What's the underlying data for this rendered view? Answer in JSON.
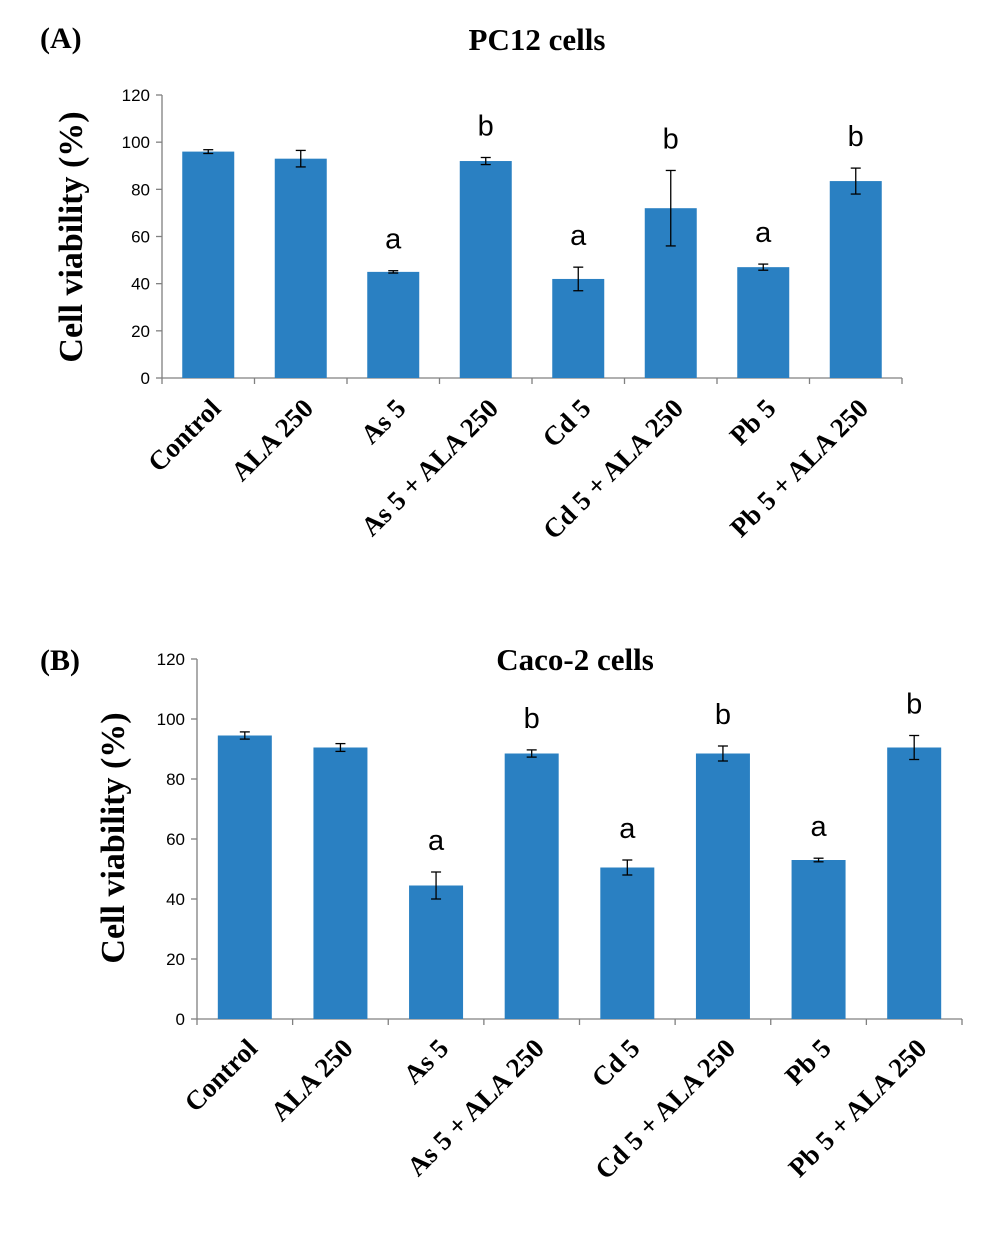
{
  "chart_data": [
    {
      "type": "bar",
      "panel_label": "(A)",
      "title": "PC12 cells",
      "xlabel": "",
      "ylabel": "Cell viability (%)",
      "ylim": [
        0,
        120
      ],
      "yticks": [
        0,
        20,
        40,
        60,
        80,
        100,
        120
      ],
      "categories": [
        "Control",
        "ALA 250",
        "As 5",
        "As 5 + ALA 250",
        "Cd 5",
        "Cd 5 + ALA 250",
        "Pb 5",
        "Pb 5 + ALA 250"
      ],
      "values": [
        96,
        93,
        45,
        92,
        42,
        72,
        47,
        83.5
      ],
      "errors": [
        0.8,
        3.5,
        0.5,
        1.5,
        5,
        16,
        1.3,
        5.5
      ],
      "labels": [
        "",
        "",
        "a",
        "b",
        "a",
        "b",
        "a",
        "b"
      ],
      "color": "#2a80c2",
      "grid": false,
      "legend": "none"
    },
    {
      "type": "bar",
      "panel_label": "(B)",
      "title": "Caco-2 cells",
      "xlabel": "",
      "ylabel": "Cell viability (%)",
      "ylim": [
        0,
        120
      ],
      "yticks": [
        0,
        20,
        40,
        60,
        80,
        100,
        120
      ],
      "categories": [
        "Control",
        "ALA 250",
        "As 5",
        "As 5 + ALA 250",
        "Cd 5",
        "Cd 5 + ALA 250",
        "Pb 5",
        "Pb 5 + ALA 250"
      ],
      "values": [
        94.5,
        90.5,
        44.5,
        88.5,
        50.5,
        88.5,
        53,
        90.5
      ],
      "errors": [
        1.2,
        1.3,
        4.5,
        1.2,
        2.5,
        2.5,
        0.6,
        4
      ],
      "labels": [
        "",
        "",
        "a",
        "b",
        "a",
        "b",
        "a",
        "b"
      ],
      "color": "#2a80c2",
      "grid": false,
      "legend": "none"
    }
  ]
}
